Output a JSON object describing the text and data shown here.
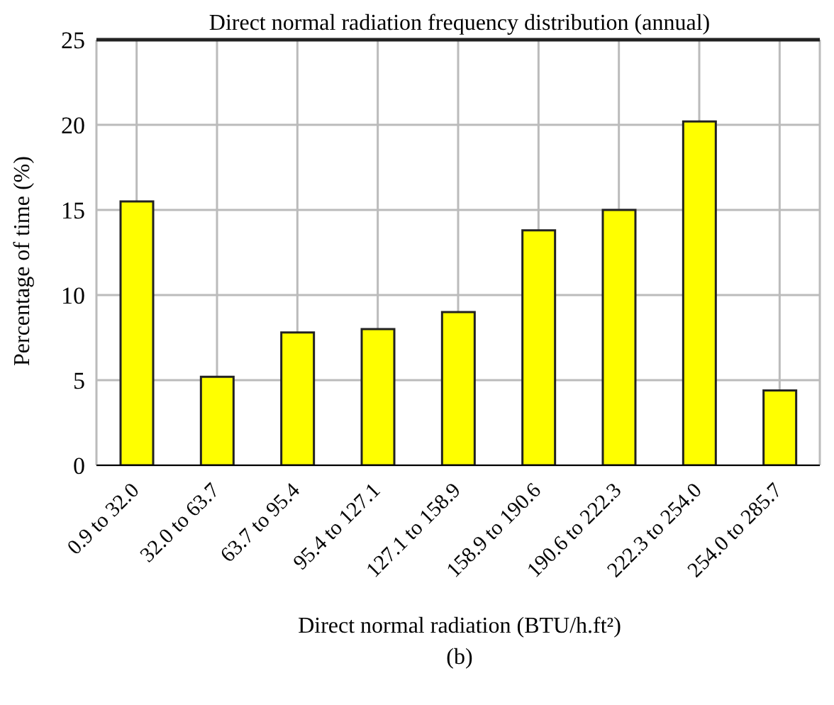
{
  "chart_data": {
    "type": "bar",
    "title": "Direct normal radiation frequency distribution (annual)",
    "xlabel": "Direct normal radiation (BTU/h.ft²)",
    "ylabel": "Percentage of time (%)",
    "annotations": [
      "(b)"
    ],
    "categories": [
      "0.9 to 32.0",
      "32.0 to 63.7",
      "63.7 to 95.4",
      "95.4 to 127.1",
      "127.1 to 158.9",
      "158.9 to 190.6",
      "190.6 to 222.3",
      "222.3 to 254.0",
      "254.0 to 285.7"
    ],
    "values": [
      15.5,
      5.2,
      7.8,
      8.0,
      9.0,
      13.8,
      15.0,
      20.2,
      4.4
    ],
    "color": "#ffff00",
    "ylim": [
      0,
      25
    ],
    "yticks": [
      0,
      5,
      10,
      15,
      20,
      25
    ],
    "grid": true
  }
}
